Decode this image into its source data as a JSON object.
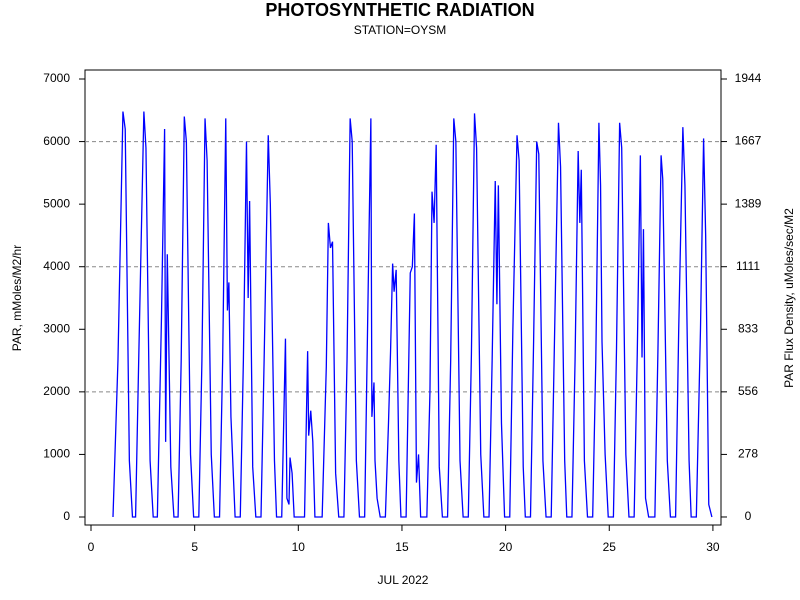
{
  "chart_data": {
    "type": "line",
    "title": "PHOTOSYNTHETIC RADIATION",
    "subtitle": "STATION=OYSM",
    "x_label": "JUL 2022",
    "y_label": "PAR, mMoles/M2/hr",
    "y2_label": "PAR Flux Density, uMoles/sec/M2",
    "color": "#0000ff",
    "xlim": [
      -0.29,
      30.39
    ],
    "xticks": [
      0,
      5,
      10,
      15,
      20,
      25,
      30
    ],
    "ylim": [
      -128,
      7144
    ],
    "yticks": [
      0,
      1000,
      2000,
      3000,
      4000,
      5000,
      6000,
      7000
    ],
    "y2lim": [
      -35.6,
      1984.4
    ],
    "y2ticks": [
      0,
      {
        "value": 277.78,
        "label": "278"
      },
      {
        "value": 555.56,
        "label": "556"
      },
      {
        "value": 833.33,
        "label": "833"
      },
      {
        "value": 1111.11,
        "label": "1111"
      },
      {
        "value": 1388.89,
        "label": "1389"
      },
      {
        "value": 1666.67,
        "label": "1667"
      },
      {
        "value": 1944.44,
        "label": "1944"
      }
    ],
    "grid_lines": [
      2000,
      4000,
      6000
    ],
    "x": [
      1.06,
      1.3,
      1.54,
      1.65,
      1.85,
      2.0,
      2.15,
      2.3,
      2.55,
      2.65,
      2.85,
      3.0,
      3.2,
      3.4,
      3.55,
      3.6,
      3.68,
      3.85,
      4.0,
      4.2,
      4.35,
      4.5,
      4.6,
      4.8,
      4.95,
      5.2,
      5.35,
      5.5,
      5.6,
      5.8,
      5.95,
      6.2,
      6.35,
      6.5,
      6.58,
      6.65,
      6.75,
      6.95,
      7.2,
      7.35,
      7.5,
      7.58,
      7.65,
      7.8,
      7.95,
      8.2,
      8.35,
      8.55,
      8.65,
      8.85,
      8.95,
      9.2,
      9.38,
      9.45,
      9.55,
      9.6,
      9.7,
      9.8,
      10.3,
      10.45,
      10.5,
      10.6,
      10.7,
      10.8,
      11.15,
      11.35,
      11.45,
      11.55,
      11.65,
      11.8,
      11.95,
      12.2,
      12.35,
      12.5,
      12.6,
      12.8,
      12.95,
      13.2,
      13.4,
      13.5,
      13.55,
      13.65,
      13.7,
      13.8,
      13.95,
      14.2,
      14.35,
      14.45,
      14.55,
      14.62,
      14.72,
      14.85,
      14.95,
      15.2,
      15.4,
      15.5,
      15.6,
      15.7,
      15.8,
      15.9,
      16.2,
      16.35,
      16.45,
      16.55,
      16.65,
      16.8,
      16.95,
      17.2,
      17.35,
      17.5,
      17.6,
      17.8,
      17.95,
      18.2,
      18.35,
      18.5,
      18.6,
      18.8,
      18.95,
      19.2,
      19.35,
      19.5,
      19.58,
      19.65,
      19.8,
      19.95,
      20.2,
      20.35,
      20.55,
      20.65,
      20.85,
      20.95,
      21.2,
      21.35,
      21.5,
      21.6,
      21.8,
      21.95,
      22.2,
      22.35,
      22.55,
      22.65,
      22.85,
      22.95,
      23.2,
      23.35,
      23.5,
      23.58,
      23.65,
      23.8,
      23.95,
      24.2,
      24.35,
      24.5,
      24.58,
      24.65,
      24.8,
      24.95,
      25.2,
      25.35,
      25.5,
      25.6,
      25.8,
      25.95,
      26.2,
      26.35,
      26.5,
      26.58,
      26.65,
      26.75,
      26.9,
      27.2,
      27.35,
      27.5,
      27.58,
      27.8,
      27.95,
      28.2,
      28.35,
      28.55,
      28.65,
      28.85,
      28.95,
      29.2,
      29.4,
      29.55,
      29.65,
      29.8,
      29.95
    ],
    "values": [
      0,
      2500,
      6480,
      6200,
      900,
      0,
      0,
      2500,
      6480,
      5900,
      900,
      0,
      0,
      3200,
      6200,
      1200,
      4200,
      800,
      0,
      0,
      2500,
      6400,
      6000,
      1000,
      0,
      0,
      2500,
      6370,
      5700,
      1000,
      0,
      0,
      2500,
      6370,
      3300,
      3750,
      1600,
      0,
      0,
      2500,
      6000,
      3500,
      5050,
      800,
      0,
      0,
      2500,
      6100,
      5000,
      900,
      0,
      0,
      2850,
      300,
      200,
      950,
      700,
      0,
      0,
      2650,
      1300,
      1700,
      1200,
      0,
      0,
      2400,
      4700,
      4300,
      4400,
      700,
      0,
      0,
      2500,
      6370,
      6000,
      900,
      0,
      0,
      4300,
      6370,
      1600,
      2150,
      900,
      300,
      0,
      0,
      1500,
      2650,
      4050,
      3600,
      3950,
      900,
      0,
      0,
      3900,
      4000,
      4850,
      550,
      1000,
      0,
      0,
      2000,
      5200,
      4700,
      5950,
      800,
      0,
      0,
      2500,
      6370,
      6000,
      900,
      0,
      0,
      2600,
      6450,
      5900,
      1000,
      0,
      0,
      2500,
      5370,
      3400,
      5300,
      1500,
      0,
      0,
      3000,
      6100,
      5700,
      800,
      0,
      0,
      2800,
      6000,
      5800,
      900,
      0,
      0,
      2700,
      6300,
      5600,
      900,
      0,
      0,
      2500,
      5850,
      4700,
      5550,
      900,
      0,
      0,
      2500,
      6300,
      5300,
      2800,
      1000,
      0,
      0,
      2700,
      6300,
      5900,
      1000,
      0,
      0,
      2600,
      5780,
      2550,
      4600,
      300,
      0,
      0,
      2700,
      5780,
      5400,
      900,
      0,
      0,
      3000,
      6230,
      5300,
      900,
      0,
      0,
      3000,
      6050,
      4500,
      200,
      0
    ]
  }
}
